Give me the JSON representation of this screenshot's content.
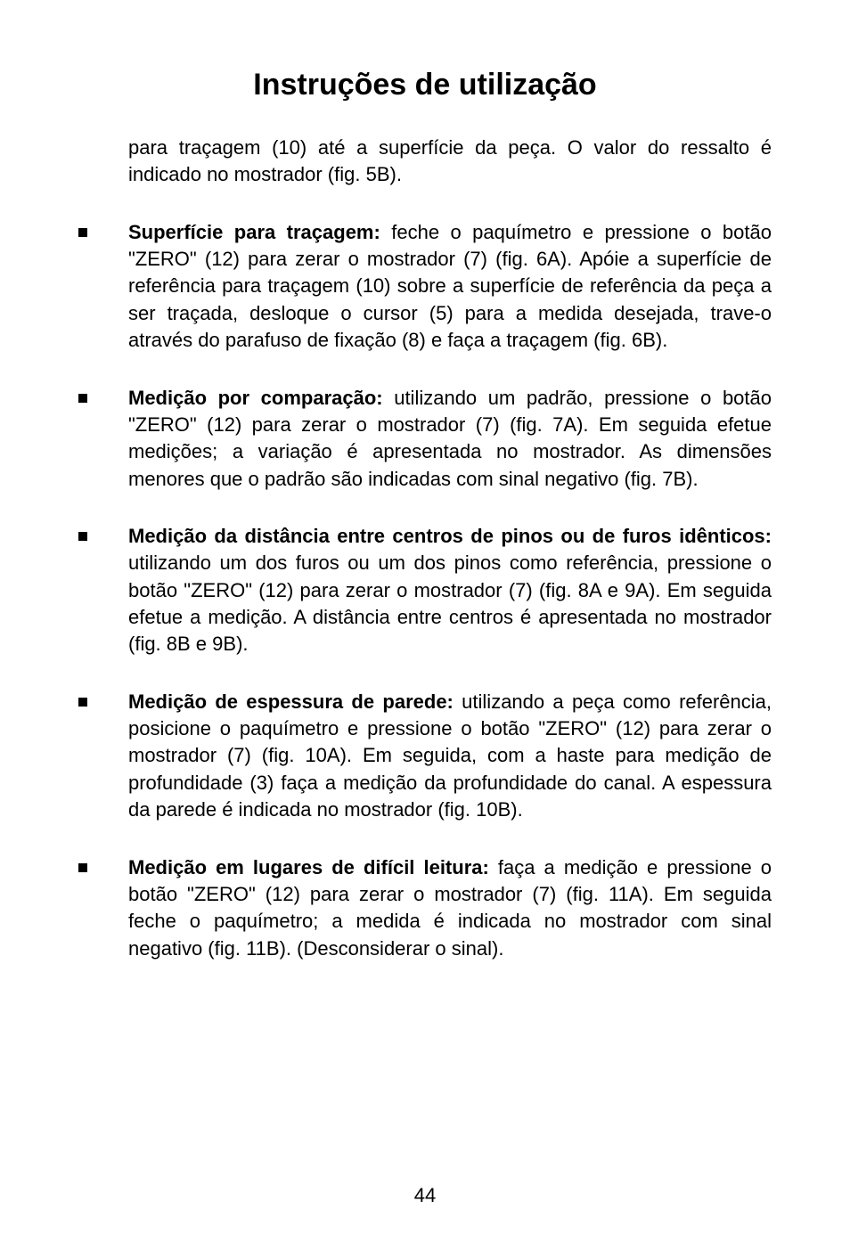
{
  "page": {
    "title": "Instruções de utilização",
    "intro": "para traçagem (10) até a superfície da peça. O valor do ressalto é indicado no mostrador (fig. 5B).",
    "items": [
      {
        "heading": "Superfície para traçagem:",
        "body": " feche o paquímetro e pressione o botão \"ZERO\" (12) para zerar o mostrador (7) (fig. 6A). Apóie a superfície de referência para traçagem (10) sobre a superfície de referência da peça a ser traçada, desloque o cursor (5) para a medida desejada, trave-o através do parafuso de fixação (8) e faça a traçagem (fig. 6B)."
      },
      {
        "heading": "Medição por comparação:",
        "body": " utilizando um padrão, pressione o botão \"ZERO\" (12) para zerar o mostrador (7) (fig. 7A). Em seguida efetue medições; a variação é apresentada no mostrador. As dimensões menores que o padrão são indicadas com sinal negativo (fig. 7B)."
      },
      {
        "heading": "Medição da distância entre centros de pinos ou de furos idênticos:",
        "body": " utilizando um dos furos ou um dos pinos como referência, pressione o botão \"ZERO\" (12) para zerar o mostrador (7) (fig. 8A e 9A). Em seguida efetue a medição. A distância entre centros é apresentada no mostrador (fig. 8B e 9B)."
      },
      {
        "heading": "Medição de espessura de parede:",
        "body": " utilizando a peça como referência, posicione o paquímetro e pressione o botão \"ZERO\" (12) para zerar o mostrador (7) (fig. 10A). Em seguida, com a haste para medição de profundidade (3) faça a medição da profundidade do canal. A espessura da parede é indicada no mostrador (fig. 10B)."
      },
      {
        "heading": "Medição em lugares de difícil leitura:",
        "body": " faça a medição e pressione o botão \"ZERO\" (12) para zerar o mostrador (7) (fig. 11A). Em seguida feche o paquímetro; a medida é indicada no mostrador com sinal negativo (fig. 11B). (Desconsiderar o sinal)."
      }
    ],
    "pageNumber": "44"
  },
  "style": {
    "background_color": "#ffffff",
    "text_color": "#000000",
    "title_fontsize": 34,
    "body_fontsize": 22,
    "line_height": 1.38,
    "bullet_size": 10,
    "font_family": "Arial, Helvetica, sans-serif"
  }
}
